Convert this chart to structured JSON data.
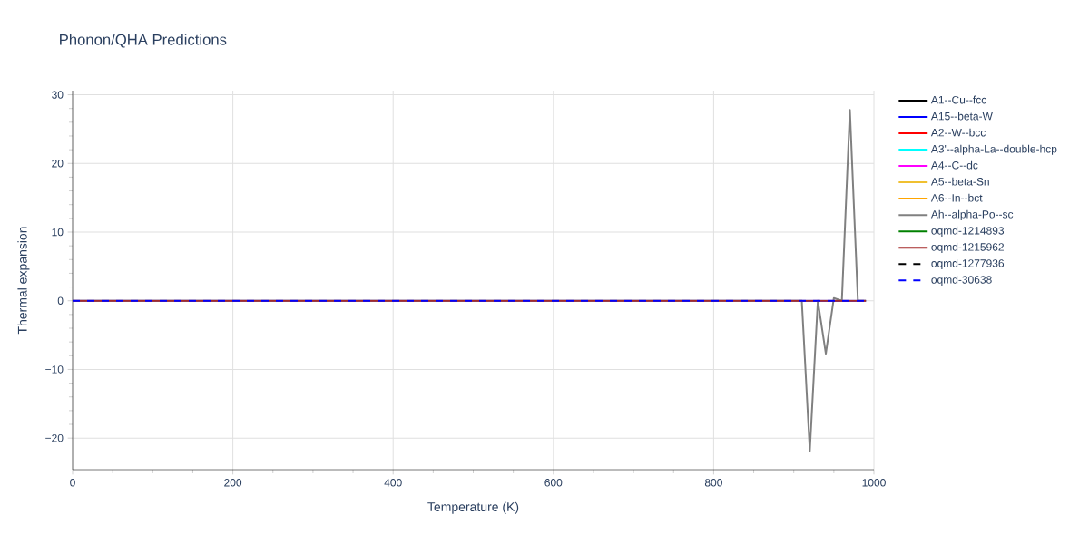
{
  "chart_data": {
    "type": "line",
    "title": "Phonon/QHA Predictions",
    "xlabel": "Temperature (K)",
    "ylabel": "Thermal expansion",
    "xlim": [
      0,
      1000
    ],
    "xticks": [
      0,
      200,
      400,
      600,
      800,
      1000
    ],
    "ylim": [
      -24.6,
      30.6
    ],
    "yticks": [
      {
        "value": -20,
        "label": "−20"
      },
      {
        "value": -10,
        "label": "−10"
      },
      0,
      10,
      20,
      30
    ],
    "grid": true,
    "legend": "top right",
    "marker": "none",
    "series": [
      {
        "name": "A1--Cu--fcc",
        "color": "#000000"
      },
      {
        "name": "A15--beta-W",
        "color": "#0000ff",
        "x": [
          0,
          990
        ],
        "values": [
          0,
          0
        ]
      },
      {
        "name": "A2--W--bcc",
        "color": "#ff0000"
      },
      {
        "name": "A3'--alpha-La--double-hcp",
        "color": "#00ffff"
      },
      {
        "name": "A4--C--dc",
        "color": "#ff00ff"
      },
      {
        "name": "A5--beta-Sn",
        "color": "#f0c030"
      },
      {
        "name": "A6--In--bct",
        "color": "#ffa500"
      },
      {
        "name": "Ah--alpha-Po--sc",
        "color": "#808080",
        "x": [
          0,
          910,
          920,
          930,
          940,
          950,
          960,
          970,
          980,
          990
        ],
        "values": [
          0,
          0,
          -21.9,
          0,
          -7.7,
          0.4,
          0,
          27.8,
          0,
          0
        ]
      },
      {
        "name": "oqmd-1214893",
        "color": "#008000"
      },
      {
        "name": "oqmd-1215962",
        "color": "#a52a2a",
        "x": [
          0,
          990
        ],
        "values": [
          0,
          0
        ]
      },
      {
        "name": "oqmd-1277936",
        "color": "#000000",
        "line_style": "dashed"
      },
      {
        "name": "oqmd-30638",
        "color": "#0000ff",
        "line_style": "dashed",
        "x": [
          0,
          990
        ],
        "values": [
          0,
          0
        ]
      }
    ]
  }
}
